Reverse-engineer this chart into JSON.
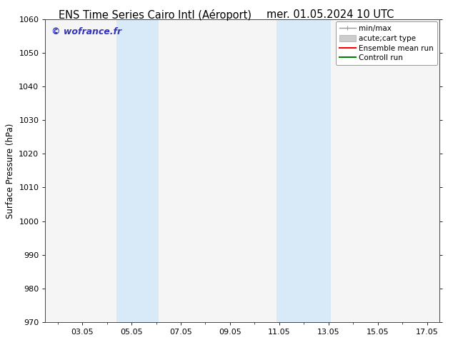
{
  "title_left": "ENS Time Series Cairo Intl (Aéroport)",
  "title_right": "mer. 01.05.2024 10 UTC",
  "ylabel": "Surface Pressure (hPa)",
  "ylim": [
    970,
    1060
  ],
  "yticks": [
    970,
    980,
    990,
    1000,
    1010,
    1020,
    1030,
    1040,
    1050,
    1060
  ],
  "xlim": [
    1.5,
    17.5
  ],
  "xtick_labels": [
    "03.05",
    "05.05",
    "07.05",
    "09.05",
    "11.05",
    "13.05",
    "15.05",
    "17.05"
  ],
  "xtick_positions": [
    3,
    5,
    7,
    9,
    11,
    13,
    15,
    17
  ],
  "shaded_bands": [
    {
      "x_start": 4.4,
      "x_end": 6.1
    },
    {
      "x_start": 10.9,
      "x_end": 13.1
    }
  ],
  "background_color": "#ffffff",
  "plot_bg_color": "#f5f5f5",
  "band_color": "#d8eaf8",
  "watermark_text": "© wofrance.fr",
  "watermark_color": "#3333bb",
  "legend_entries": [
    {
      "label": "min/max",
      "color": "#999999",
      "lw": 1.0
    },
    {
      "label": "acute;cart type",
      "color": "#cccccc",
      "lw": 6
    },
    {
      "label": "Ensemble mean run",
      "color": "#ff0000",
      "lw": 1.5
    },
    {
      "label": "Controll run",
      "color": "#008000",
      "lw": 1.5
    }
  ],
  "title_fontsize": 10.5,
  "axis_fontsize": 8.5,
  "tick_fontsize": 8,
  "legend_fontsize": 7.5
}
